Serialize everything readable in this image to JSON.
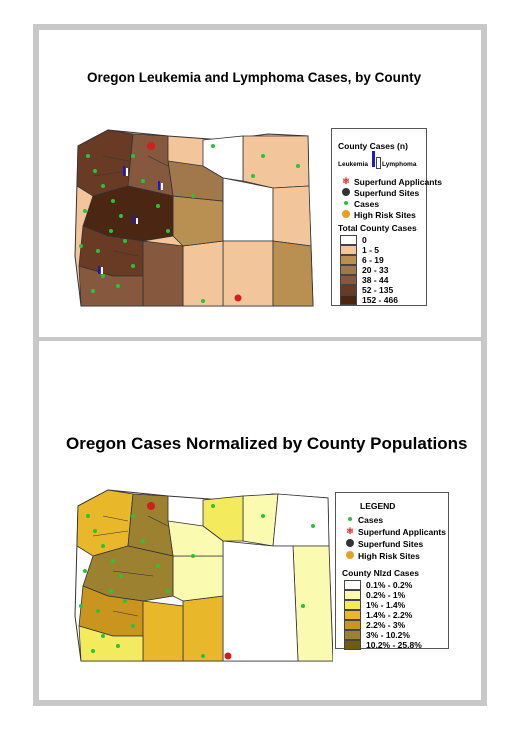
{
  "top_panel": {
    "title": "Oregon Leukemia and Lymphoma Cases, by County",
    "legend": {
      "heading": "County Cases (n)",
      "bar_left": "Leukemia",
      "bar_right": "Lymphoma",
      "symbols": [
        "Superfund Applicants",
        "Superfund Sites",
        "Cases",
        "High Risk Sites"
      ],
      "classes_title": "Total County Cases",
      "classes": [
        {
          "label": "0",
          "color": "#ffffff"
        },
        {
          "label": "1 - 5",
          "color": "#f3c59b"
        },
        {
          "label": "6 - 19",
          "color": "#b98f52"
        },
        {
          "label": "20 - 33",
          "color": "#a1784b"
        },
        {
          "label": "38 - 44",
          "color": "#86583e"
        },
        {
          "label": "52 - 135",
          "color": "#6a3b24"
        },
        {
          "label": "152 - 466",
          "color": "#4b2612"
        }
      ]
    }
  },
  "bottom_panel": {
    "title": "Oregon Cases Normalized by County Populations",
    "legend": {
      "heading": "LEGEND",
      "symbols": [
        "Cases",
        "Superfund Applicants",
        "Superfund Sites",
        "High Risk Sites"
      ],
      "classes_title": "County Nlzd Cases",
      "classes": [
        {
          "label": "0.1% - 0.2%",
          "color": "#ffffff"
        },
        {
          "label": "0.2% - 1%",
          "color": "#fafab0"
        },
        {
          "label": "1% - 1.4%",
          "color": "#f3ea5d"
        },
        {
          "label": "1.4% - 2.2%",
          "color": "#e8b72a"
        },
        {
          "label": "2.2% - 3%",
          "color": "#c9951e"
        },
        {
          "label": "3% - 10.2%",
          "color": "#9c8130"
        },
        {
          "label": "10.2% - 25.8%",
          "color": "#6f5a16"
        }
      ]
    }
  },
  "colors": {
    "frame": "#c8c8c8",
    "case_dot": "#27c43a",
    "superfund_site": "#d21e1e",
    "high_risk": "#e8a020",
    "leukemia_bar": "#1a1acc"
  }
}
